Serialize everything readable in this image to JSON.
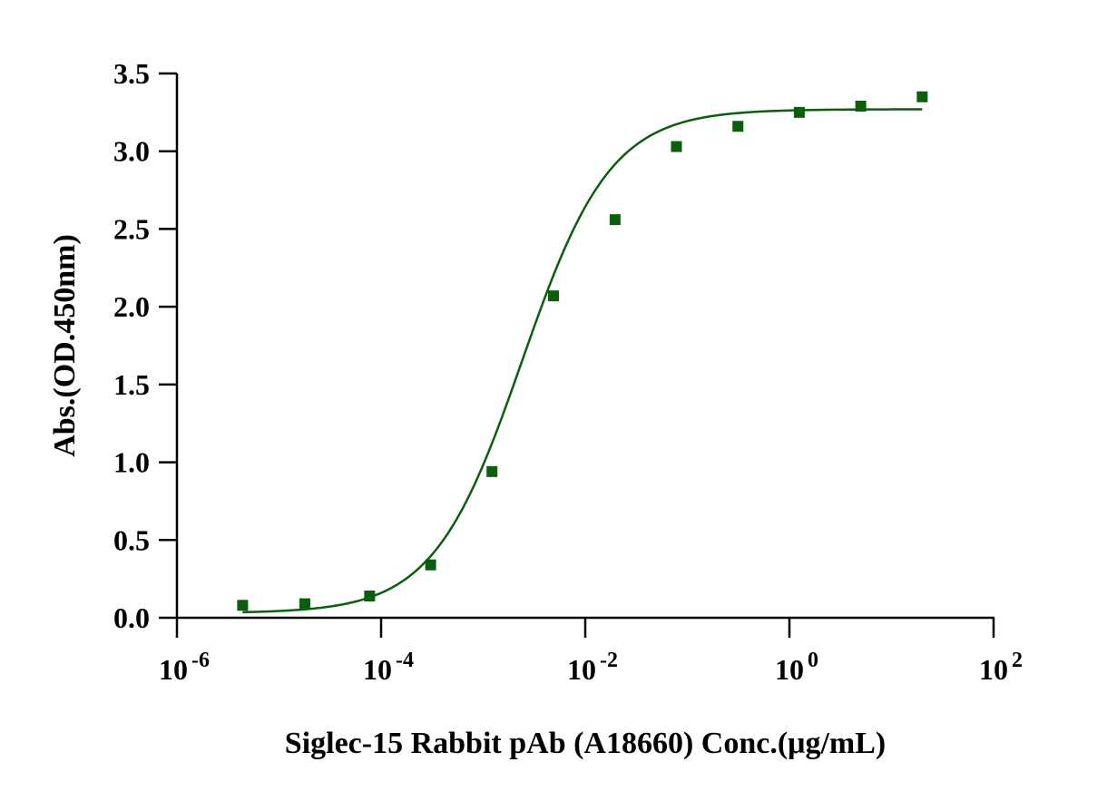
{
  "chart_data": {
    "type": "scatter",
    "xscale": "log",
    "xlabel": "Siglec-15 Rabbit pAb (A18660) Conc.(μg/mL)",
    "ylabel": "Abs.(OD.450nm)",
    "xlim": [
      1e-06,
      100
    ],
    "ylim": [
      0,
      3.5
    ],
    "x_ticks": [
      {
        "base": "10",
        "exp": "-6",
        "value": 1e-06
      },
      {
        "base": "10",
        "exp": "-4",
        "value": 0.0001
      },
      {
        "base": "10",
        "exp": "-2",
        "value": 0.01
      },
      {
        "base": "10",
        "exp": "0",
        "value": 1
      },
      {
        "base": "10",
        "exp": "2",
        "value": 100
      }
    ],
    "y_ticks": [
      "0.0",
      "0.5",
      "1.0",
      "1.5",
      "2.0",
      "2.5",
      "3.0",
      "3.5"
    ],
    "grid": false,
    "legend": "none",
    "color": "#0b5e0b",
    "series": [
      {
        "marker": "square",
        "x": [
          4.4e-06,
          1.79e-05,
          7.72e-05,
          0.000306,
          0.00122,
          0.00489,
          0.0196,
          0.0782,
          0.313,
          1.25,
          5.0,
          20.0
        ],
        "y": [
          0.08,
          0.09,
          0.14,
          0.34,
          0.94,
          2.07,
          2.56,
          3.03,
          3.16,
          3.25,
          3.29,
          3.35
        ]
      }
    ],
    "fit_curve": {
      "model": "4PL",
      "bottom": 0.03,
      "top": 3.27,
      "ec50": 0.0024,
      "hill": 1.0,
      "x_range": [
        4.4e-06,
        20.0
      ]
    }
  }
}
